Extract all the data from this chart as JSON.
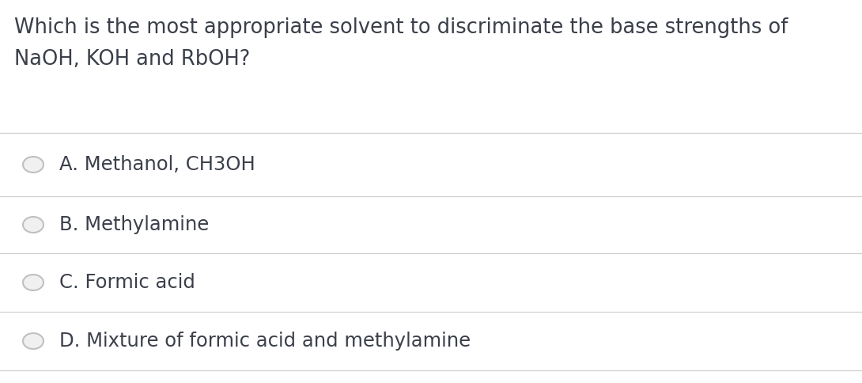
{
  "background_color": "#ffffff",
  "question_text_line1": "Which is the most appropriate solvent to discriminate the base strengths of",
  "question_text_line2": "NaOH, KOH and RbOH?",
  "question_font_size": 18.5,
  "question_color": "#3a3f4a",
  "options": [
    "A. Methanol, CH3OH",
    "B. Methylamine",
    "C. Formic acid",
    "D. Mixture of formic acid and methylamine"
  ],
  "option_font_size": 17.5,
  "option_color": "#3a3f4a",
  "divider_color": "#d0d0d0",
  "circle_edge_color": "#c0c0c0",
  "circle_fill_color": "#f0f0f0",
  "fig_width": 10.9,
  "fig_height": 4.84,
  "dpi": 100
}
